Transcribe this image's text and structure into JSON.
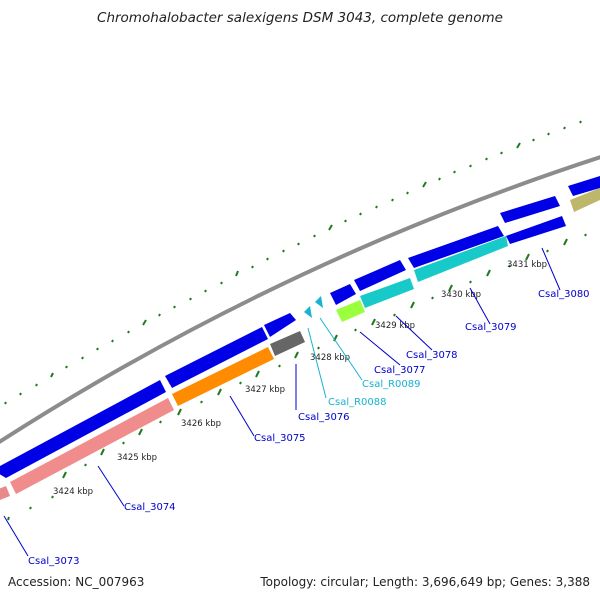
{
  "title": "Chromohalobacter salexigens DSM 3043, complete genome",
  "footer": {
    "accession": "Accession: NC_007963",
    "summary": "Topology: circular; Length: 3,696,649 bp; Genes: 3,388"
  },
  "colors": {
    "backbone": "#8c8c8c",
    "tick": "#1e7a1e",
    "cds_blue": "#0000e6",
    "rna_label": "#17b3cf"
  },
  "kbp_labels": [
    "3424 kbp",
    "3425 kbp",
    "3426 kbp",
    "3427 kbp",
    "3428 kbp",
    "3429 kbp",
    "3430 kbp",
    "3431 kbp"
  ],
  "genes": [
    {
      "name": "Csal_3073",
      "color": "#e88a8a",
      "label_color": "#0000cc",
      "kind": "rna"
    },
    {
      "name": "Csal_3074",
      "color": "#f08c8c",
      "label_color": "#0000cc"
    },
    {
      "name": "Csal_3075",
      "color": "#ff8c00",
      "label_color": "#0000cc"
    },
    {
      "name": "Csal_3076",
      "color": "#666666",
      "label_color": "#0000cc"
    },
    {
      "name": "Csal_R0088",
      "color": "#17b3cf",
      "label_color": "#17b3cf"
    },
    {
      "name": "Csal_R0089",
      "color": "#17b3cf",
      "label_color": "#17b3cf"
    },
    {
      "name": "Csal_3077",
      "color": "#9aff3c",
      "label_color": "#0000cc"
    },
    {
      "name": "Csal_3078",
      "color": "#17c9c9",
      "label_color": "#0000cc"
    },
    {
      "name": "Csal_3079",
      "color": "#17c9c9",
      "label_color": "#0000cc"
    },
    {
      "name": "Csal_3080",
      "color": "#bdb76b",
      "label_color": "#0000cc"
    }
  ]
}
